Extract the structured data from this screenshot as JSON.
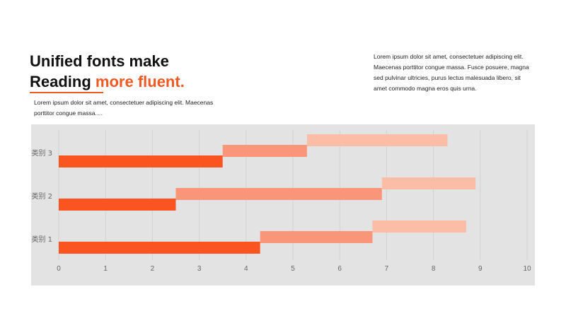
{
  "heading": {
    "line1": "Unified fonts make",
    "line2_plain": "Reading ",
    "line2_accent": "more fluent."
  },
  "intro_text": "Lorem ipsum dolor sit amet, consectetuer adipiscing elit. Maecenas porttitor congue massa.…",
  "side_text": "Lorem ipsum dolor sit amet, consectetuer adipiscing elit. Maecenas porttitor congue massa. Fusce posuere, magna sed pulvinar ultricies, purus lectus malesuada libero, sit amet commodo magna eros quis urna.",
  "colors": {
    "accent": "#f05a22",
    "panel": "#e3e3e3",
    "series": [
      "#fa5521",
      "#f9967a",
      "#fbbda6"
    ]
  },
  "chart_data": {
    "type": "bar",
    "orientation": "horizontal",
    "stacked": "cascading",
    "categories": [
      "类别 1",
      "类别 2",
      "类别 3"
    ],
    "series": [
      {
        "values": [
          4.3,
          2.5,
          3.5
        ]
      },
      {
        "values": [
          2.4,
          4.4,
          1.8
        ]
      },
      {
        "values": [
          2.0,
          2.0,
          3.0
        ]
      }
    ],
    "xlim": [
      0,
      10
    ],
    "xticks": [
      "0",
      "1",
      "2",
      "3",
      "4",
      "5",
      "6",
      "7",
      "8",
      "9",
      "10"
    ],
    "grid": true,
    "legend": "none"
  }
}
